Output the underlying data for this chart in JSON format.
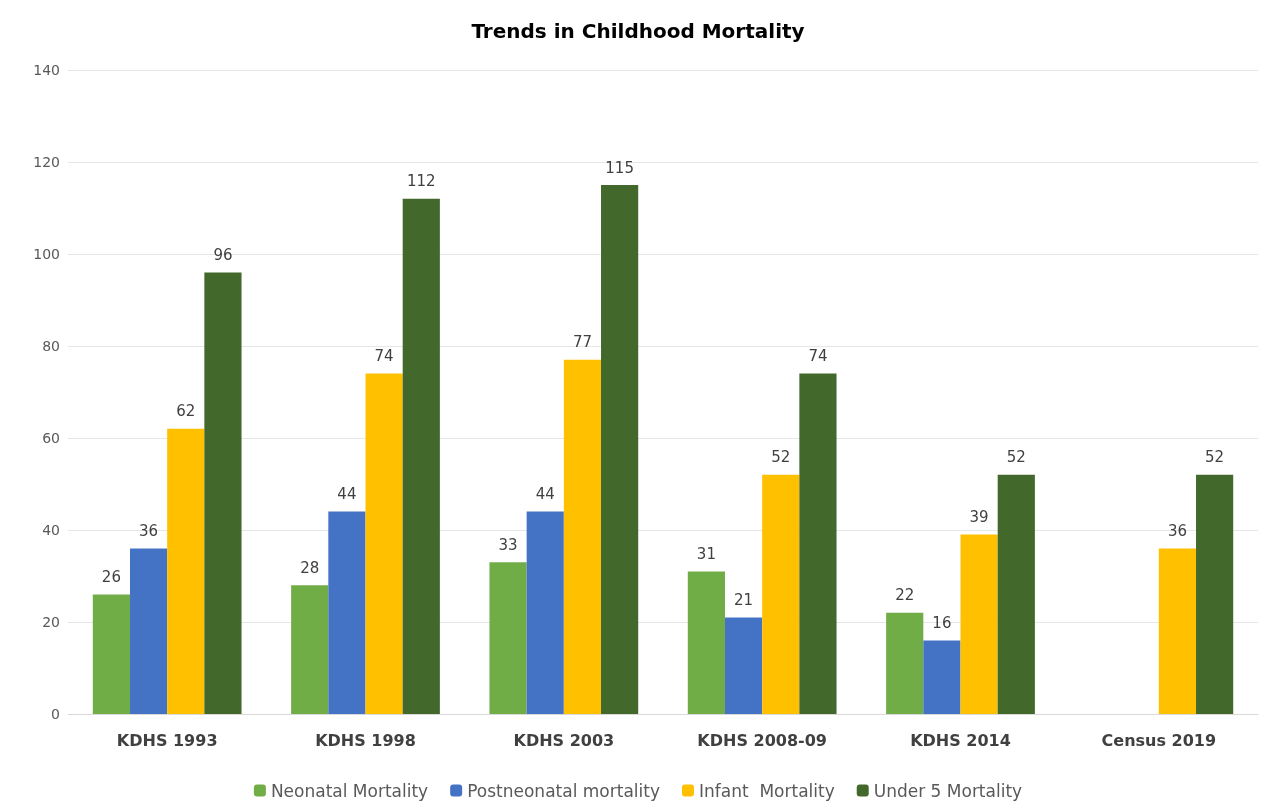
{
  "chart_data": {
    "type": "bar",
    "title": "Trends in Childhood Mortality",
    "categories": [
      "KDHS 1993",
      "KDHS 1998",
      "KDHS 2003",
      "KDHS 2008-09",
      "KDHS 2014",
      "Census 2019"
    ],
    "series": [
      {
        "name": "Neonatal Mortality",
        "color": "#70ad47",
        "values": [
          26,
          28,
          33,
          31,
          22,
          null
        ]
      },
      {
        "name": "Postneonatal mortality",
        "color": "#4472c4",
        "values": [
          36,
          44,
          44,
          21,
          16,
          null
        ]
      },
      {
        "name": "Infant  Mortality",
        "color": "#ffc000",
        "values": [
          62,
          74,
          77,
          52,
          39,
          36
        ]
      },
      {
        "name": "Under 5 Mortality",
        "color": "#43682b",
        "values": [
          96,
          112,
          115,
          74,
          52,
          52
        ]
      }
    ],
    "ylim": [
      0,
      140
    ],
    "yticks": [
      0,
      20,
      40,
      60,
      80,
      100,
      120,
      140
    ],
    "grid": "y",
    "legend": "bottom",
    "data_labels": true
  }
}
